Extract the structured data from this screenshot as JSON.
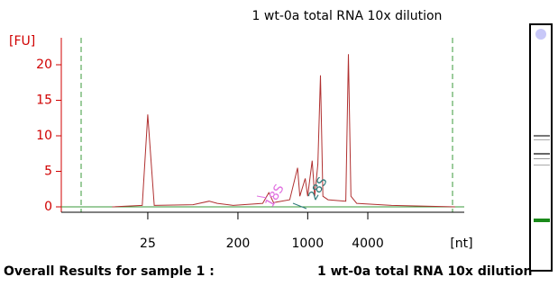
{
  "chart_data": {
    "type": "line",
    "title": "1 wt-0a total RNA 10x dilution",
    "y_label": "[FU]",
    "x_label": "[nt]",
    "x": [
      11,
      22,
      25,
      29,
      71,
      103,
      124,
      179,
      354,
      408,
      455,
      661,
      791,
      834,
      944,
      1000,
      1108,
      1175,
      1264,
      1341,
      1421,
      1598,
      2410,
      2558,
      2712,
      3095,
      6920,
      30000
    ],
    "series": [
      {
        "name": "1 wt-0a total RNA 10x dilution",
        "color": "#b03030",
        "values": [
          0,
          0.2,
          13,
          0.2,
          0.3,
          0.8,
          0.5,
          0.2,
          0.5,
          2,
          0.6,
          1,
          5.5,
          1.5,
          4,
          1.5,
          6.5,
          1.5,
          6,
          18.5,
          1.5,
          1,
          0.8,
          21.5,
          1.5,
          0.5,
          0.2,
          0
        ]
      }
    ],
    "xlim": [
      3.4,
      37000
    ],
    "xticks": [
      25,
      200,
      1000,
      4000
    ],
    "log_x": true,
    "ylim": [
      -1,
      24
    ],
    "yticks": [
      0,
      5,
      10,
      15,
      20
    ],
    "annotations": [
      "18S",
      "28S"
    ],
    "footer": {
      "label": "Overall Results for sample 1 :",
      "sample": "1 wt-0a total RNA 10x dilution"
    }
  }
}
